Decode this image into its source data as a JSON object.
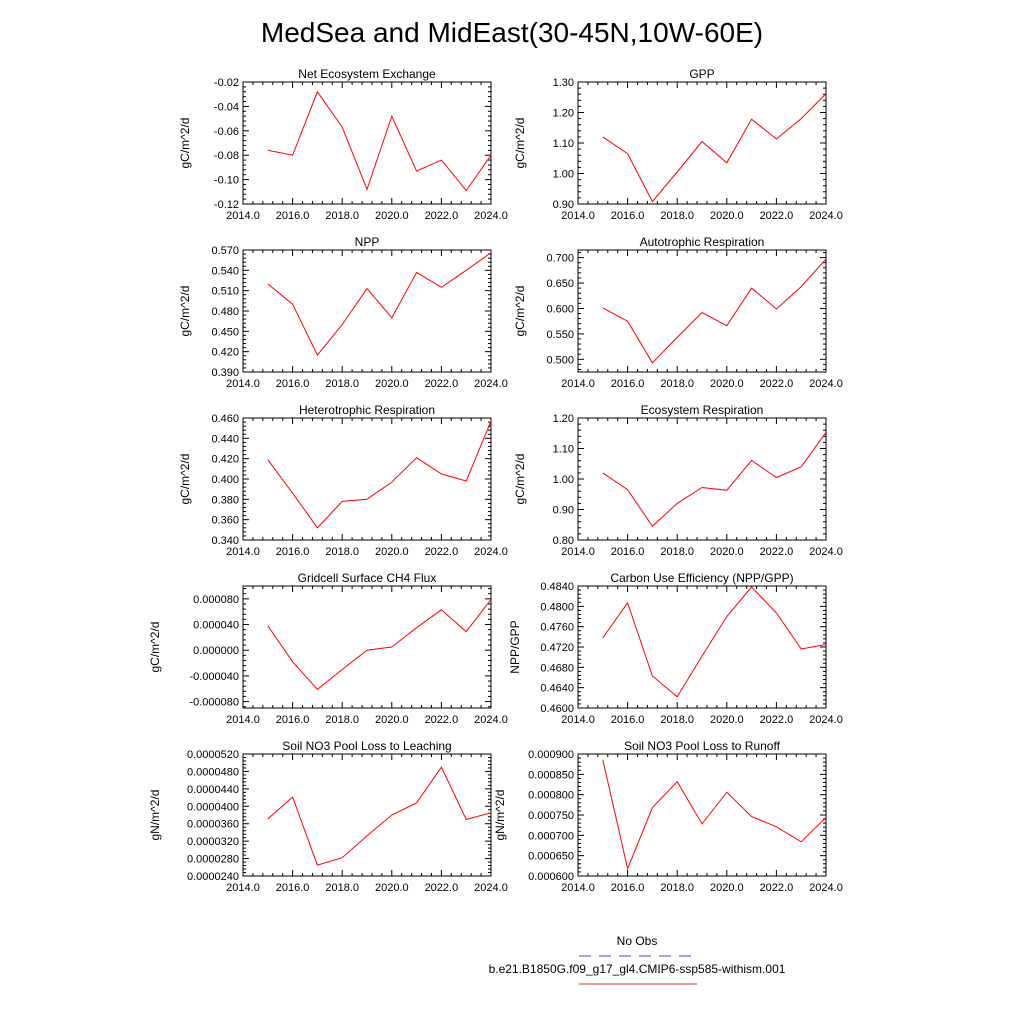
{
  "title": "MedSea and MidEast(30-45N,10W-60E)",
  "chart_data": [
    {
      "type": "line",
      "title": "Net Ecosystem Exchange",
      "ylabel": "gC/m^2/d",
      "xlim": [
        2014,
        2024
      ],
      "xticks": [
        "2014.0",
        "2016.0",
        "2018.0",
        "2020.0",
        "2022.0",
        "2024.0"
      ],
      "ylim": [
        -0.12,
        -0.02
      ],
      "yticks": [
        "-0.02",
        "-0.04",
        "-0.06",
        "-0.08",
        "-0.10",
        "-0.12"
      ],
      "series": [
        {
          "x": [
            2015,
            2016,
            2017,
            2018,
            2019,
            2020,
            2021,
            2022,
            2023,
            2024
          ],
          "values": [
            -0.076,
            -0.08,
            -0.028,
            -0.057,
            -0.108,
            -0.048,
            -0.093,
            -0.084,
            -0.109,
            -0.08
          ]
        }
      ]
    },
    {
      "type": "line",
      "title": "GPP",
      "ylabel": "gC/m^2/d",
      "xlim": [
        2014,
        2024
      ],
      "xticks": [
        "2014.0",
        "2016.0",
        "2018.0",
        "2020.0",
        "2022.0",
        "2024.0"
      ],
      "ylim": [
        0.9,
        1.3
      ],
      "yticks": [
        "1.30",
        "1.20",
        "1.10",
        "1.00",
        "0.90"
      ],
      "series": [
        {
          "x": [
            2015,
            2016,
            2017,
            2018,
            2019,
            2020,
            2021,
            2022,
            2023,
            2024
          ],
          "values": [
            1.12,
            1.065,
            0.908,
            1.005,
            1.105,
            1.035,
            1.178,
            1.113,
            1.18,
            1.262
          ]
        }
      ]
    },
    {
      "type": "line",
      "title": "NPP",
      "ylabel": "gC/m^2/d",
      "xlim": [
        2014,
        2024
      ],
      "xticks": [
        "2014.0",
        "2016.0",
        "2018.0",
        "2020.0",
        "2022.0",
        "2024.0"
      ],
      "ylim": [
        0.39,
        0.57
      ],
      "yticks": [
        "0.570",
        "0.540",
        "0.510",
        "0.480",
        "0.450",
        "0.420",
        "0.390"
      ],
      "series": [
        {
          "x": [
            2015,
            2016,
            2017,
            2018,
            2019,
            2020,
            2021,
            2022,
            2023,
            2024
          ],
          "values": [
            0.52,
            0.49,
            0.415,
            0.46,
            0.513,
            0.47,
            0.537,
            0.515,
            0.54,
            0.566
          ]
        }
      ]
    },
    {
      "type": "line",
      "title": "Autotrophic Respiration",
      "ylabel": "gC/m^2/d",
      "xlim": [
        2014,
        2024
      ],
      "xticks": [
        "2014.0",
        "2016.0",
        "2018.0",
        "2020.0",
        "2022.0",
        "2024.0"
      ],
      "ylim": [
        0.475,
        0.715
      ],
      "yticks": [
        "0.700",
        "0.650",
        "0.600",
        "0.550",
        "0.500"
      ],
      "series": [
        {
          "x": [
            2015,
            2016,
            2017,
            2018,
            2019,
            2020,
            2021,
            2022,
            2023,
            2024
          ],
          "values": [
            0.601,
            0.575,
            0.493,
            0.543,
            0.592,
            0.566,
            0.64,
            0.599,
            0.643,
            0.697
          ]
        }
      ]
    },
    {
      "type": "line",
      "title": "Heterotrophic Respiration",
      "ylabel": "gC/m^2/d",
      "xlim": [
        2014,
        2024
      ],
      "xticks": [
        "2014.0",
        "2016.0",
        "2018.0",
        "2020.0",
        "2022.0",
        "2024.0"
      ],
      "ylim": [
        0.34,
        0.46
      ],
      "yticks": [
        "0.460",
        "0.440",
        "0.420",
        "0.400",
        "0.380",
        "0.360",
        "0.340"
      ],
      "series": [
        {
          "x": [
            2015,
            2016,
            2017,
            2018,
            2019,
            2020,
            2021,
            2022,
            2023,
            2024
          ],
          "values": [
            0.419,
            0.386,
            0.352,
            0.378,
            0.38,
            0.397,
            0.421,
            0.405,
            0.398,
            0.457
          ]
        }
      ]
    },
    {
      "type": "line",
      "title": "Ecosystem Respiration",
      "ylabel": "gC/m^2/d",
      "xlim": [
        2014,
        2024
      ],
      "xticks": [
        "2014.0",
        "2016.0",
        "2018.0",
        "2020.0",
        "2022.0",
        "2024.0"
      ],
      "ylim": [
        0.8,
        1.2
      ],
      "yticks": [
        "1.20",
        "1.10",
        "1.00",
        "0.90",
        "0.80"
      ],
      "series": [
        {
          "x": [
            2015,
            2016,
            2017,
            2018,
            2019,
            2020,
            2021,
            2022,
            2023,
            2024
          ],
          "values": [
            1.02,
            0.965,
            0.845,
            0.92,
            0.972,
            0.963,
            1.061,
            1.005,
            1.04,
            1.153
          ]
        }
      ]
    },
    {
      "type": "line",
      "title": "Gridcell Surface CH4 Flux",
      "ylabel": "gC/m^2/d",
      "xlim": [
        2014,
        2024
      ],
      "xticks": [
        "2014.0",
        "2016.0",
        "2018.0",
        "2020.0",
        "2022.0",
        "2024.0"
      ],
      "ylim": [
        -9e-05,
        0.0001
      ],
      "yticks": [
        "0.000080",
        "0.000040",
        "0.000000",
        "-0.000040",
        "-0.000080"
      ],
      "series": [
        {
          "x": [
            2015,
            2016,
            2017,
            2018,
            2019,
            2020,
            2021,
            2022,
            2023,
            2024
          ],
          "values": [
            3.8e-05,
            -1.8e-05,
            -6.1e-05,
            -3e-05,
            0.0,
            5e-06,
            3.5e-05,
            6.3e-05,
            2.9e-05,
            7.9e-05
          ]
        }
      ]
    },
    {
      "type": "line",
      "title": "Carbon Use Efficiency (NPP/GPP)",
      "ylabel": "NPP/GPP",
      "xlim": [
        2014,
        2024
      ],
      "xticks": [
        "2014.0",
        "2016.0",
        "2018.0",
        "2020.0",
        "2022.0",
        "2024.0"
      ],
      "ylim": [
        0.46,
        0.484
      ],
      "yticks": [
        "0.4840",
        "0.4800",
        "0.4760",
        "0.4720",
        "0.4680",
        "0.4640",
        "0.4600"
      ],
      "series": [
        {
          "x": [
            2015,
            2016,
            2017,
            2018,
            2019,
            2020,
            2021,
            2022,
            2023,
            2024
          ],
          "values": [
            0.4738,
            0.4807,
            0.4663,
            0.4622,
            0.4702,
            0.478,
            0.4838,
            0.4787,
            0.4716,
            0.4725
          ]
        }
      ]
    },
    {
      "type": "line",
      "title": "Soil NO3 Pool Loss to Leaching",
      "ylabel": "gN/m^2/d",
      "xlim": [
        2014,
        2024
      ],
      "xticks": [
        "2014.0",
        "2016.0",
        "2018.0",
        "2020.0",
        "2022.0",
        "2024.0"
      ],
      "ylim": [
        2.4e-05,
        5.2e-05
      ],
      "yticks": [
        "0.0000520",
        "0.0000480",
        "0.0000440",
        "0.0000400",
        "0.0000360",
        "0.0000320",
        "0.0000280",
        "0.0000240"
      ],
      "series": [
        {
          "x": [
            2015,
            2016,
            2017,
            2018,
            2019,
            2020,
            2021,
            2022,
            2023,
            2024
          ],
          "values": [
            3.71e-05,
            4.21e-05,
            2.65e-05,
            2.82e-05,
            3.32e-05,
            3.8e-05,
            4.08e-05,
            4.9e-05,
            3.7e-05,
            3.85e-05
          ]
        }
      ]
    },
    {
      "type": "line",
      "title": "Soil NO3 Pool Loss to Runoff",
      "ylabel": "gN/m^2/d",
      "xlim": [
        2014,
        2024
      ],
      "xticks": [
        "2014.0",
        "2016.0",
        "2018.0",
        "2020.0",
        "2022.0",
        "2024.0"
      ],
      "ylim": [
        0.0006,
        0.0009
      ],
      "yticks": [
        "0.000900",
        "0.000850",
        "0.000800",
        "0.000750",
        "0.000700",
        "0.000650",
        "0.000600"
      ],
      "series": [
        {
          "x": [
            2015,
            2016,
            2017,
            2018,
            2019,
            2020,
            2021,
            2022,
            2023,
            2024
          ],
          "values": [
            0.000886,
            0.000618,
            0.000768,
            0.000832,
            0.000728,
            0.000806,
            0.000746,
            0.000721,
            0.000684,
            0.000744
          ]
        }
      ]
    }
  ],
  "legend": {
    "items": [
      {
        "label": "No Obs",
        "color": "#4a4acc",
        "dashed": true
      },
      {
        "label": "b.e21.B1850G.f09_g17_gl4.CMIP6-ssp585-withism.001",
        "color": "#e03030",
        "dashed": false
      }
    ]
  },
  "colors": {
    "line": "#ff0000",
    "axis": "#000000"
  }
}
